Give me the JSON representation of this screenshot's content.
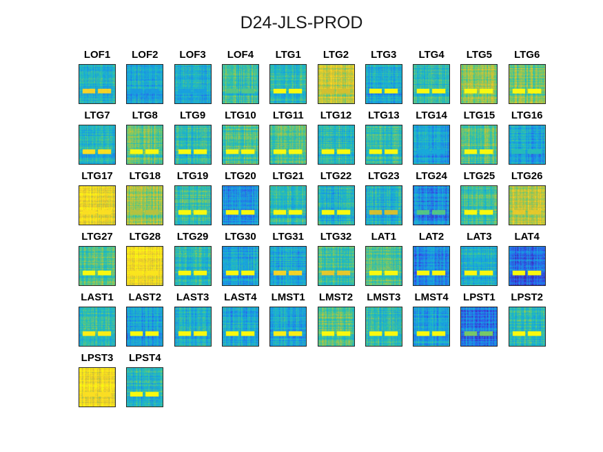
{
  "figure": {
    "title": "D24-JLS-PROD"
  },
  "colors": {
    "colormap": [
      "#3e26a8",
      "#3154ef",
      "#1a8fe6",
      "#18b0d7",
      "#2fc3a5",
      "#89c95a",
      "#d6be2f",
      "#fbd827",
      "#f9fb0e"
    ]
  },
  "chart_data": {
    "type": "heatmap",
    "title": "D24-JLS-PROD",
    "grid": {
      "rows": 6,
      "cols": 10
    },
    "panels": [
      {
        "label": "LOF1",
        "base": 0.42,
        "stripe": 0.85
      },
      {
        "label": "LOF2",
        "base": 0.38,
        "stripe": 0.3
      },
      {
        "label": "LOF3",
        "base": 0.4,
        "stripe": 0.32
      },
      {
        "label": "LOF4",
        "base": 0.5,
        "stripe": 0.55
      },
      {
        "label": "LTG1",
        "base": 0.45,
        "stripe": 1.0
      },
      {
        "label": "LTG2",
        "base": 0.72,
        "stripe": 0.75
      },
      {
        "label": "LTG3",
        "base": 0.38,
        "stripe": 1.0
      },
      {
        "label": "LTG4",
        "base": 0.45,
        "stripe": 1.0
      },
      {
        "label": "LTG5",
        "base": 0.65,
        "stripe": 1.0
      },
      {
        "label": "LTG6",
        "base": 0.6,
        "stripe": 1.0
      },
      {
        "label": "LTG7",
        "base": 0.4,
        "stripe": 0.9
      },
      {
        "label": "LTG8",
        "base": 0.55,
        "stripe": 1.0
      },
      {
        "label": "LTG9",
        "base": 0.45,
        "stripe": 1.0
      },
      {
        "label": "LTG10",
        "base": 0.52,
        "stripe": 1.0
      },
      {
        "label": "LTG11",
        "base": 0.55,
        "stripe": 1.0
      },
      {
        "label": "LTG12",
        "base": 0.45,
        "stripe": 1.0
      },
      {
        "label": "LTG13",
        "base": 0.48,
        "stripe": 1.0
      },
      {
        "label": "LTG14",
        "base": 0.35,
        "stripe": 0.35
      },
      {
        "label": "LTG15",
        "base": 0.55,
        "stripe": 1.0
      },
      {
        "label": "LTG16",
        "base": 0.35,
        "stripe": 0.45
      },
      {
        "label": "LTG17",
        "base": 0.85,
        "stripe": 0.9
      },
      {
        "label": "LTG18",
        "base": 0.65,
        "stripe": 0.7
      },
      {
        "label": "LTG19",
        "base": 0.5,
        "stripe": 1.0
      },
      {
        "label": "LTG20",
        "base": 0.3,
        "stripe": 1.0
      },
      {
        "label": "LTG21",
        "base": 0.45,
        "stripe": 1.0
      },
      {
        "label": "LTG22",
        "base": 0.4,
        "stripe": 1.0
      },
      {
        "label": "LTG23",
        "base": 0.4,
        "stripe": 0.75
      },
      {
        "label": "LTG24",
        "base": 0.25,
        "stripe": 0.55
      },
      {
        "label": "LTG25",
        "base": 0.5,
        "stripe": 1.0
      },
      {
        "label": "LTG26",
        "base": 0.7,
        "stripe": 0.8
      },
      {
        "label": "LTG27",
        "base": 0.55,
        "stripe": 1.0
      },
      {
        "label": "LTG28",
        "base": 0.88,
        "stripe": 0.92
      },
      {
        "label": "LTG29",
        "base": 0.45,
        "stripe": 1.0
      },
      {
        "label": "LTG30",
        "base": 0.35,
        "stripe": 1.0
      },
      {
        "label": "LTG31",
        "base": 0.35,
        "stripe": 0.85
      },
      {
        "label": "LTG32",
        "base": 0.5,
        "stripe": 0.8
      },
      {
        "label": "LAT1",
        "base": 0.55,
        "stripe": 1.0
      },
      {
        "label": "LAT2",
        "base": 0.25,
        "stripe": 1.0
      },
      {
        "label": "LAT3",
        "base": 0.4,
        "stripe": 1.0
      },
      {
        "label": "LAT4",
        "base": 0.18,
        "stripe": 1.0
      },
      {
        "label": "LAST1",
        "base": 0.45,
        "stripe": 0.95
      },
      {
        "label": "LAST2",
        "base": 0.32,
        "stripe": 1.0
      },
      {
        "label": "LAST3",
        "base": 0.4,
        "stripe": 1.0
      },
      {
        "label": "LAST4",
        "base": 0.35,
        "stripe": 1.0
      },
      {
        "label": "LMST1",
        "base": 0.35,
        "stripe": 0.95
      },
      {
        "label": "LMST2",
        "base": 0.55,
        "stripe": 1.0
      },
      {
        "label": "LMST3",
        "base": 0.45,
        "stripe": 1.0
      },
      {
        "label": "LMST4",
        "base": 0.35,
        "stripe": 1.0
      },
      {
        "label": "LPST1",
        "base": 0.22,
        "stripe": 0.6
      },
      {
        "label": "LPST2",
        "base": 0.45,
        "stripe": 1.0
      },
      {
        "label": "LPST3",
        "base": 0.85,
        "stripe": 0.9
      },
      {
        "label": "LPST4",
        "base": 0.42,
        "stripe": 1.0
      }
    ]
  }
}
